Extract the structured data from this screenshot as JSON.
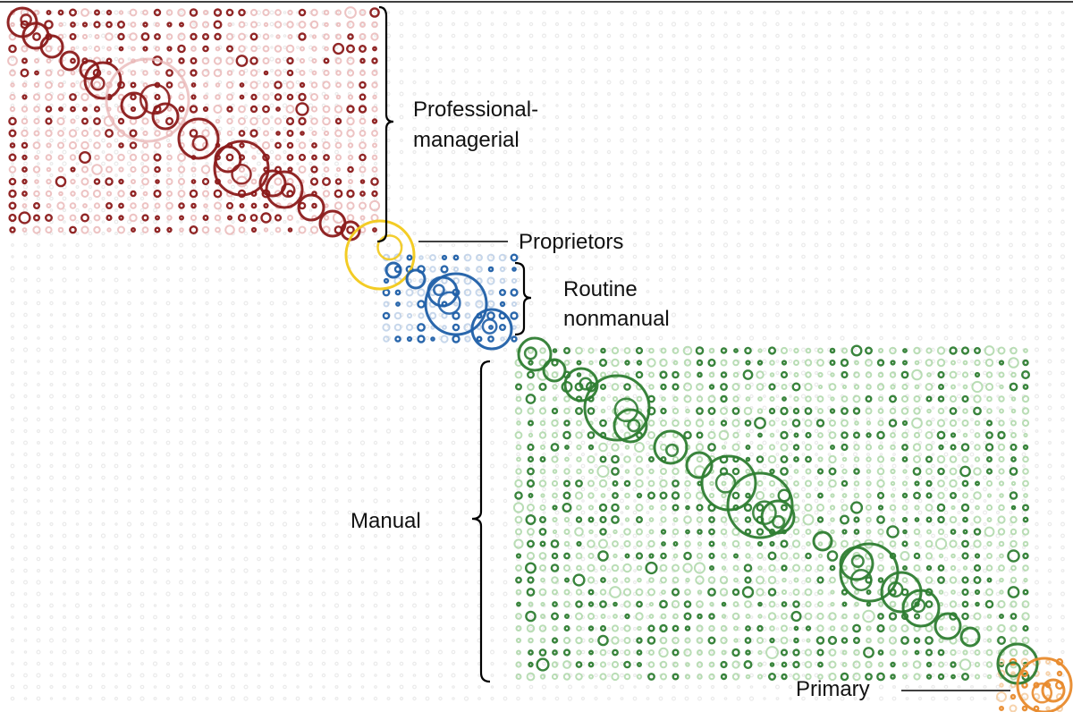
{
  "labels": {
    "professional_line1": "Professional-",
    "professional_line2": "managerial",
    "proprietors": "Proprietors",
    "routine_line1": "Routine",
    "routine_line2": "nonmanual",
    "manual": "Manual",
    "primary": "Primary"
  },
  "groups": [
    {
      "key": "professional",
      "color": "#8b1a1a",
      "light": "#e8b4b4"
    },
    {
      "key": "proprietors",
      "color": "#f2c919",
      "light": "#f6e08a"
    },
    {
      "key": "routine",
      "color": "#1f5fa8",
      "light": "#b9cde6"
    },
    {
      "key": "manual",
      "color": "#2e7d32",
      "light": "#a8d5a2"
    },
    {
      "key": "primary",
      "color": "#e88a2c",
      "light": "#f4c796"
    }
  ]
}
